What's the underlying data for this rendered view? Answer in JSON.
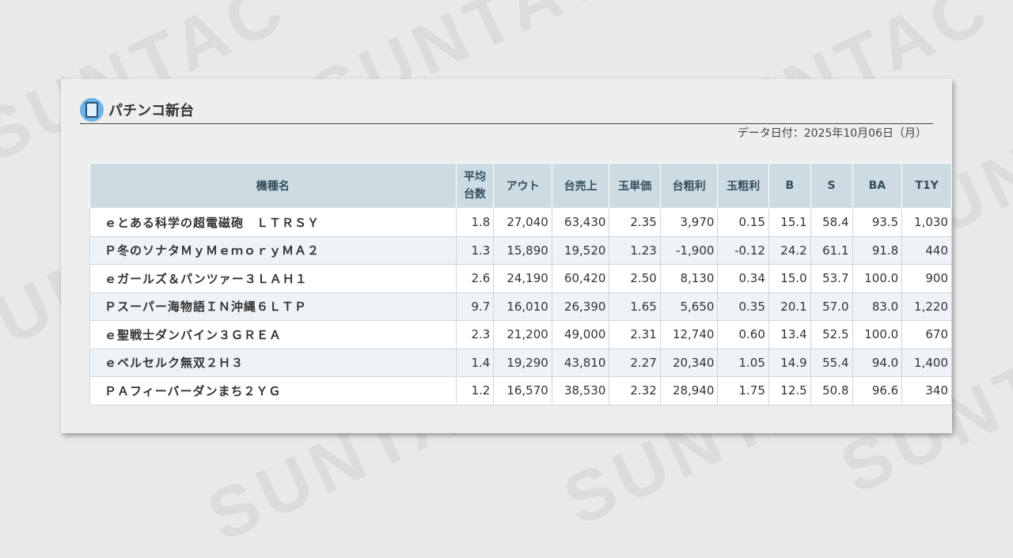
{
  "watermark": "SUNTAC",
  "section": {
    "title": "パチンコ新台",
    "icon": "pachinko-machine-icon",
    "date": "データ日付：2025年10月06日（月）"
  },
  "table": {
    "headers": [
      "機種名",
      "平均台数",
      "アウト",
      "台売上",
      "玉単価",
      "台粗利",
      "玉粗利",
      "B",
      "S",
      "BA",
      "T1Y"
    ],
    "rows": [
      [
        "ｅとある科学の超電磁砲　ＬＴＲＳＹ",
        "1.8",
        "27,040",
        "63,430",
        "2.35",
        "3,970",
        "0.15",
        "15.1",
        "58.4",
        "93.5",
        "1,030"
      ],
      [
        "Ｐ冬のソナタＭｙＭｅｍｏｒｙＭＡ２",
        "1.3",
        "15,890",
        "19,520",
        "1.23",
        "-1,900",
        "-0.12",
        "24.2",
        "61.1",
        "91.8",
        "440"
      ],
      [
        "ｅガールズ＆パンツァー３ＬＡＨ１",
        "2.6",
        "24,190",
        "60,420",
        "2.50",
        "8,130",
        "0.34",
        "15.0",
        "53.7",
        "100.0",
        "900"
      ],
      [
        "Ｐスーパー海物語ＩＮ沖縄６ＬＴＰ",
        "9.7",
        "16,010",
        "26,390",
        "1.65",
        "5,650",
        "0.35",
        "20.1",
        "57.0",
        "83.0",
        "1,220"
      ],
      [
        "ｅ聖戦士ダンバイン３ＧＲＥＡ",
        "2.3",
        "21,200",
        "49,000",
        "2.31",
        "12,740",
        "0.60",
        "13.4",
        "52.5",
        "100.0",
        "670"
      ],
      [
        "ｅベルセルク無双２Ｈ３",
        "1.4",
        "19,290",
        "43,810",
        "2.27",
        "20,340",
        "1.05",
        "14.9",
        "55.4",
        "94.0",
        "1,400"
      ],
      [
        "ＰＡフィーバーダンまち２ＹＧ",
        "1.2",
        "16,570",
        "38,530",
        "2.32",
        "28,940",
        "1.75",
        "12.5",
        "50.8",
        "96.6",
        "340"
      ]
    ]
  }
}
